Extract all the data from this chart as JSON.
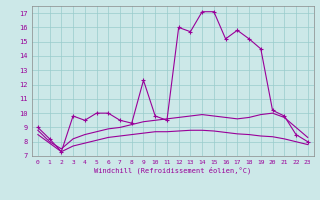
{
  "xlabel": "Windchill (Refroidissement éolien,°C)",
  "background_color": "#cce8e8",
  "line_color": "#990099",
  "xlim": [
    -0.5,
    23.5
  ],
  "ylim": [
    7,
    17.5
  ],
  "xticks": [
    0,
    1,
    2,
    3,
    4,
    5,
    6,
    7,
    8,
    9,
    10,
    11,
    12,
    13,
    14,
    15,
    16,
    17,
    18,
    19,
    20,
    21,
    22,
    23
  ],
  "yticks": [
    7,
    8,
    9,
    10,
    11,
    12,
    13,
    14,
    15,
    16,
    17
  ],
  "line1_x": [
    0,
    1,
    2,
    3,
    4,
    5,
    6,
    7,
    8,
    9,
    10,
    11,
    12,
    13,
    14,
    15,
    16,
    17,
    18,
    19,
    20,
    21,
    22,
    23
  ],
  "line1_y": [
    9.0,
    8.2,
    7.3,
    9.8,
    9.5,
    10.0,
    10.0,
    9.5,
    9.3,
    12.3,
    9.8,
    9.5,
    16.0,
    15.7,
    17.1,
    17.1,
    15.2,
    15.8,
    15.2,
    14.5,
    10.2,
    9.8,
    8.5,
    8.0
  ],
  "line2_x": [
    0,
    1,
    2,
    3,
    4,
    5,
    6,
    7,
    8,
    9,
    10,
    11,
    12,
    13,
    14,
    15,
    16,
    17,
    18,
    19,
    20,
    21,
    22,
    23
  ],
  "line2_y": [
    8.8,
    8.0,
    7.5,
    8.2,
    8.5,
    8.7,
    8.9,
    9.0,
    9.2,
    9.4,
    9.5,
    9.6,
    9.7,
    9.8,
    9.9,
    9.8,
    9.7,
    9.6,
    9.7,
    9.9,
    10.0,
    9.7,
    9.0,
    8.3
  ],
  "line3_x": [
    0,
    1,
    2,
    3,
    4,
    5,
    6,
    7,
    8,
    9,
    10,
    11,
    12,
    13,
    14,
    15,
    16,
    17,
    18,
    19,
    20,
    21,
    22,
    23
  ],
  "line3_y": [
    8.5,
    7.9,
    7.3,
    7.7,
    7.9,
    8.1,
    8.3,
    8.4,
    8.5,
    8.6,
    8.7,
    8.7,
    8.75,
    8.8,
    8.8,
    8.75,
    8.65,
    8.55,
    8.5,
    8.4,
    8.35,
    8.2,
    8.0,
    7.8
  ]
}
